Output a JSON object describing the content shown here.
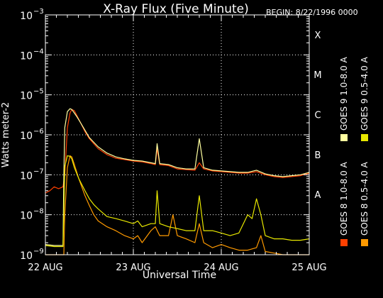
{
  "chart_data": {
    "type": "line",
    "title": "X-Ray Flux (Five Minute)",
    "begin_label": "BEGIN: 8/22/1996 0000",
    "xlabel": "Universal Time",
    "ylabel": "Watts meter-2",
    "x_unit": "days since 1996-08-22 00:00 UT",
    "x_ticks": [
      {
        "x": 0,
        "label": "22 AUG"
      },
      {
        "x": 1,
        "label": "23 AUG"
      },
      {
        "x": 2,
        "label": "24 AUG"
      },
      {
        "x": 3,
        "label": "25 AUG"
      }
    ],
    "xlim": [
      0,
      3
    ],
    "y_scale": "log",
    "ylim": [
      1e-09,
      0.001
    ],
    "y_ticks": [
      {
        "value": 1e-09,
        "base": "10",
        "exp": "−9"
      },
      {
        "value": 1e-08,
        "base": "10",
        "exp": "−8"
      },
      {
        "value": 1e-07,
        "base": "10",
        "exp": "−7"
      },
      {
        "value": 1e-06,
        "base": "10",
        "exp": "−6"
      },
      {
        "value": 1e-05,
        "base": "10",
        "exp": "−5"
      },
      {
        "value": 0.0001,
        "base": "10",
        "exp": "−4"
      },
      {
        "value": 0.001,
        "base": "10",
        "exp": "−3"
      }
    ],
    "flare_classes": [
      {
        "label": "A",
        "value": 1e-08
      },
      {
        "label": "B",
        "value": 1e-07
      },
      {
        "label": "C",
        "value": 1e-06
      },
      {
        "label": "M",
        "value": 1e-05
      },
      {
        "label": "X",
        "value": 0.0001
      }
    ],
    "grid": true,
    "legend_position": "right, rotated vertical",
    "series": [
      {
        "name": "GOES 8 1.0-8.0 A",
        "color": "#ff4000",
        "x": [
          0.0,
          0.05,
          0.1,
          0.15,
          0.2,
          0.22,
          0.25,
          0.28,
          0.3,
          0.33,
          0.36,
          0.4,
          0.45,
          0.5,
          0.55,
          0.6,
          0.7,
          0.8,
          0.9,
          1.0,
          1.1,
          1.2,
          1.25,
          1.27,
          1.3,
          1.4,
          1.5,
          1.6,
          1.7,
          1.75,
          1.8,
          1.9,
          2.0,
          2.1,
          2.2,
          2.3,
          2.4,
          2.5,
          2.6,
          2.7,
          2.8,
          2.9,
          3.0
        ],
        "values": [
          3.5e-08,
          4e-08,
          5e-08,
          4.5e-08,
          5e-08,
          1e-07,
          1.5e-06,
          3.5e-06,
          4.3e-06,
          4e-06,
          3e-06,
          2e-06,
          1.2e-06,
          8e-07,
          6e-07,
          4.5e-07,
          3.2e-07,
          2.6e-07,
          2.4e-07,
          2.2e-07,
          2.1e-07,
          1.9e-07,
          1.8e-07,
          4.5e-07,
          1.8e-07,
          1.7e-07,
          1.4e-07,
          1.35e-07,
          1.3e-07,
          2e-07,
          1.4e-07,
          1.25e-07,
          1.2e-07,
          1.15e-07,
          1.1e-07,
          1.1e-07,
          1.2e-07,
          1e-07,
          9e-08,
          8.5e-08,
          9e-08,
          9.5e-08,
          1.1e-07
        ]
      },
      {
        "name": "GOES 8 0.5-4.0 A",
        "color": "#ff9a00",
        "x": [
          0.0,
          0.2,
          0.21,
          0.22,
          0.25,
          0.28,
          0.3,
          0.33,
          0.38,
          0.45,
          0.5,
          0.55,
          0.6,
          0.7,
          0.8,
          0.9,
          1.0,
          1.05,
          1.1,
          1.2,
          1.25,
          1.3,
          1.4,
          1.45,
          1.5,
          1.6,
          1.7,
          1.75,
          1.8,
          1.9,
          2.0,
          2.1,
          2.2,
          2.3,
          2.4,
          2.45,
          2.5,
          2.6,
          2.7,
          2.8,
          2.9,
          3.0
        ],
        "values": [
          1e-09,
          1e-09,
          1e-09,
          1e-08,
          1.5e-07,
          3e-07,
          2.8e-07,
          1.8e-07,
          8e-08,
          3e-08,
          1.7e-08,
          1e-08,
          7e-09,
          5e-09,
          4e-09,
          3e-09,
          2.5e-09,
          3e-09,
          2e-09,
          4e-09,
          5e-09,
          3e-09,
          3e-09,
          1e-08,
          3e-09,
          2.5e-09,
          2e-09,
          6e-09,
          2e-09,
          1.5e-09,
          1.8e-09,
          1.5e-09,
          1.3e-09,
          1.3e-09,
          1.5e-09,
          3e-09,
          1.2e-09,
          1.1e-09,
          1e-09,
          1e-09,
          1e-09,
          1e-09
        ]
      },
      {
        "name": "GOES 9 1.0-8.0 A",
        "color": "#ffffa0",
        "x": [
          0.0,
          0.1,
          0.2,
          0.21,
          0.22,
          0.25,
          0.28,
          0.3,
          0.33,
          0.36,
          0.4,
          0.45,
          0.5,
          0.55,
          0.6,
          0.7,
          0.8,
          0.9,
          1.0,
          1.1,
          1.2,
          1.25,
          1.27,
          1.3,
          1.4,
          1.5,
          1.6,
          1.7,
          1.75,
          1.8,
          1.9,
          2.0,
          2.1,
          2.2,
          2.3,
          2.4,
          2.5,
          2.6,
          2.7,
          2.8,
          2.9,
          3.0
        ],
        "values": [
          1.8e-09,
          1.7e-09,
          1.7e-09,
          1e-07,
          1.5e-06,
          3.8e-06,
          4.5e-06,
          4.3e-06,
          3.5e-06,
          2.8e-06,
          2e-06,
          1.3e-06,
          8.5e-07,
          6.5e-07,
          5e-07,
          3.5e-07,
          2.8e-07,
          2.5e-07,
          2.3e-07,
          2.2e-07,
          2e-07,
          1.9e-07,
          6e-07,
          1.9e-07,
          1.8e-07,
          1.5e-07,
          1.4e-07,
          1.4e-07,
          8e-07,
          1.5e-07,
          1.3e-07,
          1.25e-07,
          1.2e-07,
          1.15e-07,
          1.15e-07,
          1.3e-07,
          1.05e-07,
          9.5e-08,
          9e-08,
          9.5e-08,
          1e-07,
          1.15e-07
        ]
      },
      {
        "name": "GOES 9 0.5-4.0 A",
        "color": "#e8e800",
        "x": [
          0.0,
          0.1,
          0.2,
          0.21,
          0.22,
          0.25,
          0.28,
          0.3,
          0.33,
          0.38,
          0.45,
          0.5,
          0.55,
          0.6,
          0.7,
          0.8,
          0.9,
          1.0,
          1.05,
          1.1,
          1.2,
          1.25,
          1.27,
          1.3,
          1.4,
          1.5,
          1.6,
          1.7,
          1.75,
          1.8,
          1.9,
          2.0,
          2.1,
          2.2,
          2.3,
          2.35,
          2.4,
          2.45,
          2.5,
          2.6,
          2.7,
          2.8,
          2.9,
          3.0
        ],
        "values": [
          1.7e-09,
          1.6e-09,
          1.6e-09,
          1e-08,
          1.6e-07,
          3e-07,
          2.9e-07,
          2.5e-07,
          1.5e-07,
          8e-08,
          4e-08,
          2.5e-08,
          1.8e-08,
          1.4e-08,
          9e-09,
          8e-09,
          7e-09,
          6e-09,
          7e-09,
          5e-09,
          6e-09,
          6e-09,
          4e-08,
          6e-09,
          5e-09,
          4.5e-09,
          4e-09,
          4e-09,
          3e-08,
          4e-09,
          4e-09,
          3.5e-09,
          3e-09,
          3.5e-09,
          1e-08,
          8e-09,
          2.5e-08,
          1e-08,
          3e-09,
          2.5e-09,
          2.5e-09,
          2.3e-09,
          2.3e-09,
          2.5e-09
        ]
      }
    ]
  }
}
